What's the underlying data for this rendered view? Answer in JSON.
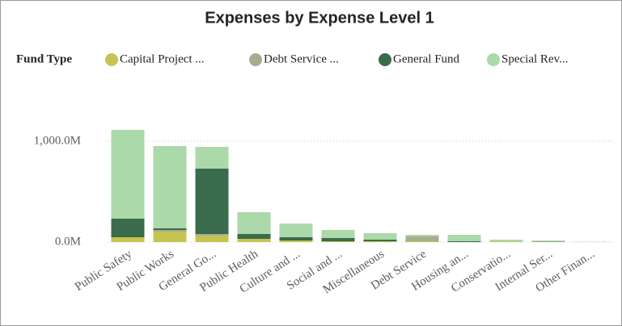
{
  "chart_data": {
    "type": "stacked_bar",
    "title": "Expenses by Expense Level 1",
    "legend_title": "Fund Type",
    "categories": [
      "Public Safety",
      "Public Works",
      "General Go...",
      "Public Health",
      "Culture and ...",
      "Social and ...",
      "Miscellaneous",
      "Debt Service",
      "Housing an...",
      "Conservatio...",
      "Internal Ser...",
      "Other Finan..."
    ],
    "series": [
      {
        "name": "Capital Project ...",
        "color": "#c5c452",
        "values": [
          48,
          104,
          64,
          32,
          16,
          8,
          8,
          8,
          0,
          4,
          0,
          0
        ]
      },
      {
        "name": "Debt Service ...",
        "color": "#a8ab8e",
        "values": [
          0,
          16,
          16,
          0,
          0,
          0,
          0,
          48,
          0,
          0,
          8,
          0
        ]
      },
      {
        "name": "General Fund",
        "color": "#3a6b4c",
        "values": [
          184,
          16,
          648,
          48,
          32,
          32,
          16,
          0,
          8,
          0,
          0,
          0
        ]
      },
      {
        "name": "Special Rev...",
        "color": "#abd9a9",
        "values": [
          880,
          816,
          216,
          216,
          136,
          80,
          64,
          16,
          64,
          20,
          8,
          4
        ]
      }
    ],
    "ylim": [
      0,
      1280
    ],
    "yticks": [
      {
        "value": 0,
        "label": "0.0M"
      },
      {
        "value": 1000,
        "label": "1,000.0M"
      }
    ],
    "grid": true
  }
}
